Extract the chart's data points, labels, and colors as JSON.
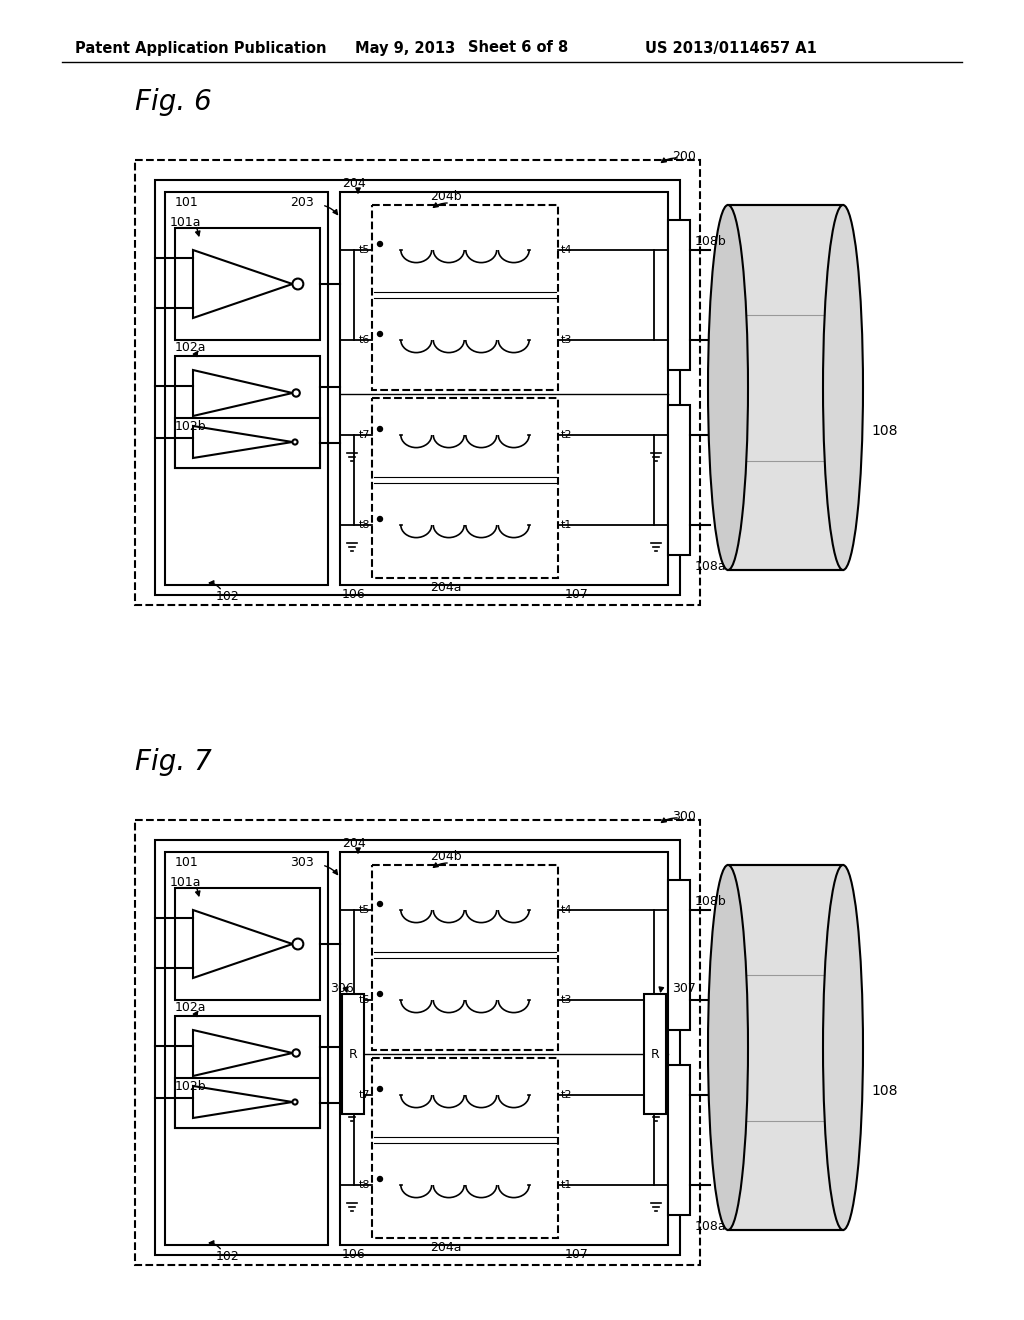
{
  "bg_color": "#ffffff",
  "header_text": "Patent Application Publication",
  "header_date": "May 9, 2013",
  "header_sheet": "Sheet 6 of 8",
  "header_patent": "US 2013/0114657 A1",
  "fig6_title": "Fig. 6",
  "fig7_title": "Fig. 7",
  "fig6_label": "200",
  "fig7_label": "300"
}
